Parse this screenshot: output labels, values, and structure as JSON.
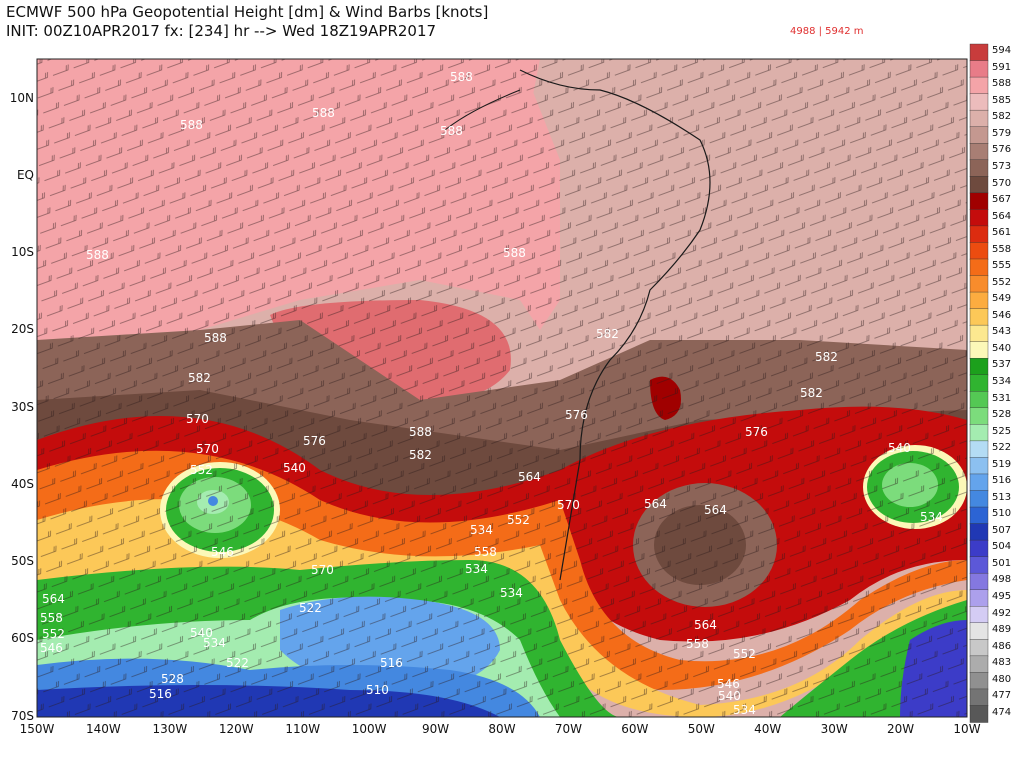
{
  "title": {
    "line1": "ECMWF 500 hPa Geopotential Height [dm] & Wind Barbs [knots]",
    "line2": "INIT: 00Z10APR2017 fx: [234] hr --> Wed 18Z19APR2017",
    "range": "4988 | 5942 m"
  },
  "axes": {
    "lat_labels": [
      "10N",
      "EQ",
      "10S",
      "20S",
      "30S",
      "40S",
      "50S",
      "60S",
      "70S"
    ],
    "lon_labels": [
      "150W",
      "140W",
      "130W",
      "120W",
      "110W",
      "100W",
      "90W",
      "80W",
      "70W",
      "60W",
      "50W",
      "40W",
      "30W",
      "20W",
      "10W"
    ]
  },
  "colorbar": {
    "levels": [
      594,
      591,
      588,
      585,
      582,
      579,
      576,
      573,
      570,
      567,
      564,
      561,
      558,
      555,
      552,
      549,
      546,
      543,
      540,
      537,
      534,
      531,
      528,
      525,
      522,
      519,
      516,
      513,
      510,
      507,
      504,
      501,
      498,
      495,
      492,
      489,
      486,
      483,
      480,
      477,
      474
    ],
    "colors": [
      "#c83c3c",
      "#e87c88",
      "#f4a4a8",
      "#ecbcbc",
      "#dcb0aa",
      "#c49890",
      "#a87e74",
      "#8c6458",
      "#6e4a3e",
      "#a00000",
      "#c40c0c",
      "#dc2c10",
      "#ec4c10",
      "#f46c18",
      "#f88c2c",
      "#fcac40",
      "#fcc858",
      "#fce890",
      "#fcf8b8",
      "#1ca01c",
      "#30b430",
      "#54c854",
      "#7cdc7c",
      "#a4ecb0",
      "#b4dcf4",
      "#8cc0f0",
      "#64a4ec",
      "#4488e0",
      "#2c64d4",
      "#2038b4",
      "#3c3cc8",
      "#5c58d8",
      "#8478e0",
      "#aca0ec",
      "#d4ccf4",
      "#e4e4e4",
      "#c8c8c8",
      "#acacac",
      "#909090",
      "#747474",
      "#585858"
    ]
  },
  "contour_labels": [
    {
      "text": "588"
    },
    {
      "text": "588"
    },
    {
      "text": "588"
    },
    {
      "text": "588"
    },
    {
      "text": "588"
    },
    {
      "text": "588"
    },
    {
      "text": "588"
    },
    {
      "text": "582"
    },
    {
      "text": "582"
    },
    {
      "text": "582"
    },
    {
      "text": "570"
    },
    {
      "text": "576"
    },
    {
      "text": "588"
    },
    {
      "text": "582"
    },
    {
      "text": "576"
    },
    {
      "text": "582"
    },
    {
      "text": "576"
    },
    {
      "text": "570"
    },
    {
      "text": "552"
    },
    {
      "text": "540"
    },
    {
      "text": "564"
    },
    {
      "text": "570"
    },
    {
      "text": "564"
    },
    {
      "text": "564"
    },
    {
      "text": "570"
    },
    {
      "text": "546"
    },
    {
      "text": "534"
    },
    {
      "text": "552"
    },
    {
      "text": "558"
    },
    {
      "text": "540"
    },
    {
      "text": "534"
    },
    {
      "text": "534"
    },
    {
      "text": "564"
    },
    {
      "text": "558"
    },
    {
      "text": "552"
    },
    {
      "text": "540"
    },
    {
      "text": "534"
    },
    {
      "text": "522"
    },
    {
      "text": "516"
    },
    {
      "text": "510"
    },
    {
      "text": "522"
    },
    {
      "text": "516"
    },
    {
      "text": "534"
    },
    {
      "text": "528"
    },
    {
      "text": "564"
    },
    {
      "text": "558"
    },
    {
      "text": "552"
    },
    {
      "text": "546"
    },
    {
      "text": "540"
    },
    {
      "text": "534"
    },
    {
      "text": "546"
    }
  ]
}
